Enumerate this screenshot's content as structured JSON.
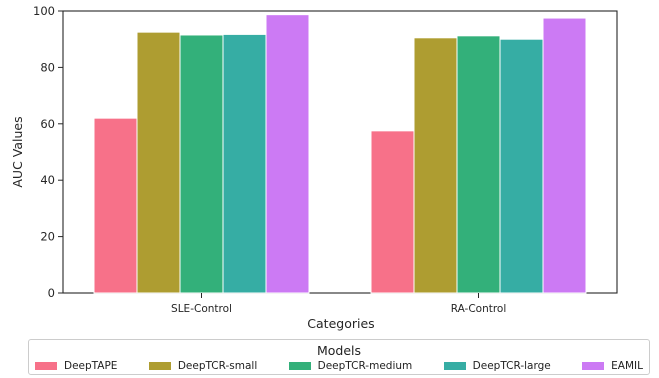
{
  "chart_data": {
    "type": "bar",
    "title": "",
    "xlabel": "Categories",
    "ylabel": "AUC Values",
    "ylim": [
      0,
      100
    ],
    "yticks": [
      0,
      20,
      40,
      60,
      80,
      100
    ],
    "categories": [
      "SLE-Control",
      "RA-Control"
    ],
    "series": [
      {
        "name": "DeepTAPE",
        "color": "#f77189",
        "values": [
          62,
          57.5
        ]
      },
      {
        "name": "DeepTCR-small",
        "color": "#ae9d31",
        "values": [
          92.5,
          90.5
        ]
      },
      {
        "name": "DeepTCR-medium",
        "color": "#33b07a",
        "values": [
          91.5,
          91.2
        ]
      },
      {
        "name": "DeepTCR-large",
        "color": "#36ada4",
        "values": [
          91.7,
          90
        ]
      },
      {
        "name": "EAMIL",
        "color": "#cc7af4",
        "values": [
          98.7,
          97.5
        ]
      }
    ],
    "grid": false,
    "legend": {
      "title": "Models",
      "placement": "bottom"
    }
  }
}
